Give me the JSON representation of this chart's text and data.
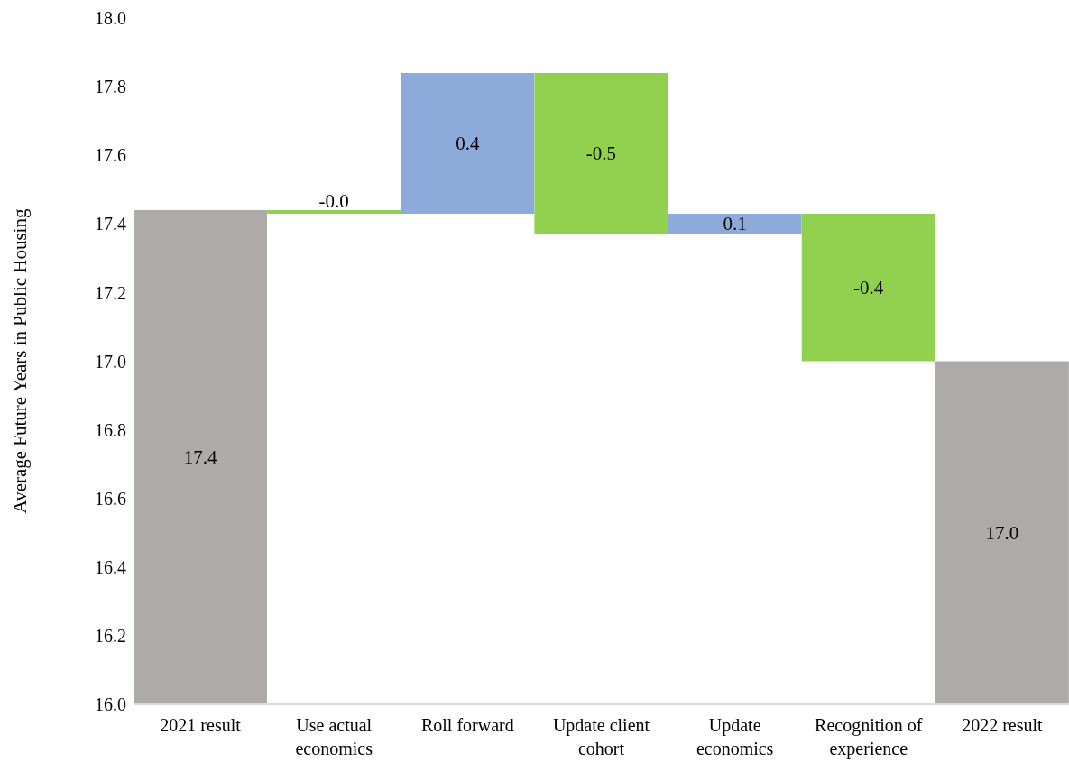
{
  "chart_data": {
    "type": "bar",
    "ylabel": "Average Future Years in Public Housing",
    "categories": [
      "2021 result",
      "Use actual economics",
      "Roll forward",
      "Update client cohort",
      "Update economics",
      "Recognition of experience",
      "2022 result"
    ],
    "values": [
      17.44,
      -0.01,
      0.41,
      -0.47,
      0.06,
      -0.43,
      17.0
    ],
    "base": [
      null,
      17.44,
      17.43,
      17.84,
      17.37,
      17.43,
      null
    ],
    "colors": [
      "#aeaaaa",
      "#92d050",
      "#8eaadb",
      "#92d050",
      "#8eaadb",
      "#92d050",
      "#aeaaaa"
    ],
    "value_labels": [
      "17.4",
      "-0.0",
      "0.4",
      "-0.5",
      "0.1",
      "-0.4",
      "17.0"
    ],
    "ylim": [
      16.0,
      18.0
    ],
    "yticks": [
      {
        "value": 16.0,
        "label": "16.0"
      },
      {
        "value": 16.2,
        "label": "16.2"
      },
      {
        "value": 16.4,
        "label": "16.4"
      },
      {
        "value": 16.6,
        "label": "16.6"
      },
      {
        "value": 16.8,
        "label": "16.8"
      },
      {
        "value": 17.0,
        "label": "17.0"
      },
      {
        "value": 17.2,
        "label": "17.2"
      },
      {
        "value": 17.4,
        "label": "17.4"
      },
      {
        "value": 17.6,
        "label": "17.6"
      },
      {
        "value": 17.8,
        "label": "17.8"
      },
      {
        "value": 18.0,
        "label": "18.0"
      }
    ],
    "grid": false,
    "legend": false
  }
}
